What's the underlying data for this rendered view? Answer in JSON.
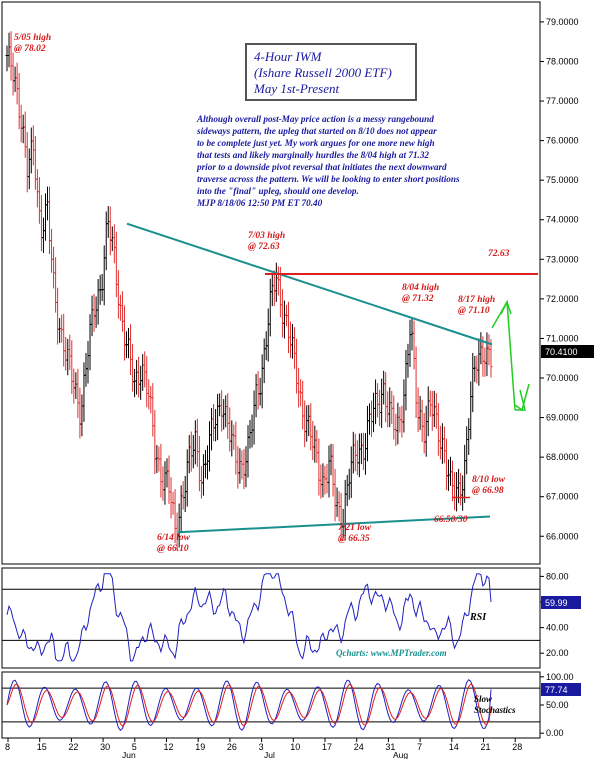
{
  "chart_data": [
    {
      "type": "candlestick",
      "title_lines": [
        "4-Hour IWM",
        "(Ishare Russell 2000 ETF)",
        "May 1st-Present"
      ],
      "commentary": [
        "Although overall post-May price action is a messy rangebound",
        "sideways pattern, the upleg that started on 8/10 does not appear",
        "to be complete just yet. My work argues for one more new high",
        "that tests and likely marginally hurdles the 8/04 high at 71.32",
        "prior to a downside pivot reversal that initiates the next downward",
        "traverse across the pattern. We will be looking to enter short positions",
        "into the \"final\" upleg, should one develop.",
        "MJP  8/18/06  12:50 PM ET 70.40"
      ],
      "ylim": [
        65.4,
        79.2
      ],
      "y_ticks": [
        "79.0000",
        "78.0000",
        "77.0000",
        "76.0000",
        "75.0000",
        "74.0000",
        "73.0000",
        "72.0000",
        "71.0000",
        "70.0000",
        "69.0000",
        "68.0000",
        "67.0000",
        "66.0000"
      ],
      "last_price": "70.4100",
      "close_path": [
        78.0,
        77.7,
        76.8,
        75.2,
        75.8,
        73.8,
        74.2,
        72.2,
        71.2,
        70.4,
        69.8,
        69.2,
        70.6,
        71.8,
        72.4,
        73.9,
        73.0,
        71.6,
        70.6,
        69.8,
        70.4,
        69.6,
        68.2,
        67.6,
        67.3,
        66.1,
        67.0,
        67.8,
        68.4,
        67.5,
        68.2,
        69.0,
        69.5,
        68.6,
        68.0,
        67.8,
        68.2,
        69.5,
        70.3,
        71.6,
        72.6,
        71.8,
        71.0,
        70.2,
        69.2,
        68.6,
        68.0,
        67.4,
        67.8,
        66.7,
        66.6,
        67.6,
        68.1,
        68.3,
        68.9,
        69.3,
        69.8,
        69.0,
        68.6,
        69.6,
        71.3,
        69.2,
        68.8,
        69.3,
        68.7,
        68.3,
        67.2,
        67.0,
        67.7,
        69.5,
        70.5,
        70.8,
        70.4
      ],
      "annotations": [
        {
          "text_lines": [
            "5/05 high",
            "@ 78.02"
          ]
        },
        {
          "text_lines": [
            "7/03 high",
            "@ 72.63"
          ]
        },
        {
          "text_lines": [
            "8/04 high",
            "@ 71.32"
          ]
        },
        {
          "text_lines": [
            "8/17 high",
            "@ 71.10"
          ]
        },
        {
          "text_lines": [
            "8/10 low",
            "@ 66.98"
          ]
        },
        {
          "text_lines": [
            "6/14 low",
            "@ 66.10"
          ]
        },
        {
          "text_lines": [
            "7/21 low",
            "@ 66.35"
          ]
        },
        {
          "text_lines": [
            "66.50/30"
          ]
        },
        {
          "text_lines": [
            "72.63"
          ]
        }
      ],
      "resistance_level": 72.63,
      "trendlines": {
        "upper": {
          "from": 73.9,
          "to": 70.85
        },
        "lower": {
          "from": 66.1,
          "to": 66.5
        }
      },
      "x_ticks": [
        "8",
        "15",
        "22",
        "30",
        "5",
        "12",
        "19",
        "26",
        "3",
        "10",
        "17",
        "24",
        "31",
        "7",
        "14",
        "21",
        "28"
      ],
      "month_labels": [
        "Jun",
        "Jul",
        "Aug"
      ]
    },
    {
      "type": "line",
      "label": "RSI",
      "ylim": [
        10,
        85
      ],
      "y_ticks": [
        "80.00",
        "60.00",
        "40.00",
        "20.00"
      ],
      "last_value": "59.99",
      "watermark": "Qcharts: www.MPTrader.com"
    },
    {
      "type": "line",
      "label_lines": [
        "Slow",
        "Stochastics"
      ],
      "ylim": [
        -5,
        105
      ],
      "y_ticks": [
        "100.00",
        "50.00",
        "0.00"
      ],
      "last_value": "77.74"
    }
  ]
}
